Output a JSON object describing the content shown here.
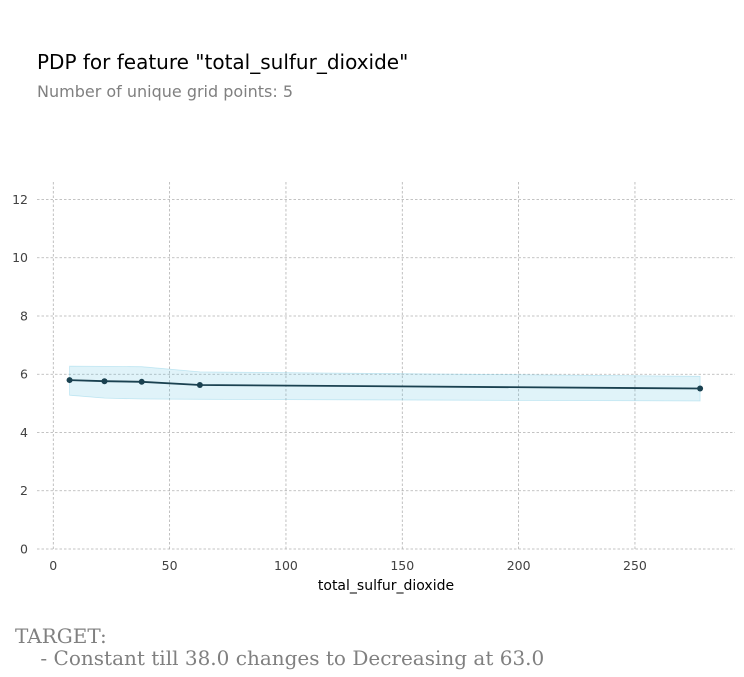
{
  "chart_data": {
    "type": "line",
    "title": "PDP for feature \"total_sulfur_dioxide\"",
    "subtitle": "Number of unique grid points: 5",
    "xlabel": "total_sulfur_dioxide",
    "ylabel": "",
    "xlim": [
      -7,
      293
    ],
    "ylim": [
      0,
      12.6
    ],
    "xticks": [
      0,
      50,
      100,
      150,
      200,
      250
    ],
    "yticks": [
      0,
      2,
      4,
      6,
      8,
      10,
      12
    ],
    "grid": true,
    "x": [
      7,
      22,
      38,
      63,
      278
    ],
    "series": [
      {
        "values": [
          5.8,
          5.76,
          5.74,
          5.63,
          5.51
        ],
        "upper": [
          6.28,
          6.27,
          6.26,
          6.08,
          5.93
        ],
        "lower": [
          5.28,
          5.18,
          5.15,
          5.14,
          5.08
        ]
      }
    ],
    "colors": {
      "line": "#1a4150",
      "band": "#66c2e0",
      "grid": "#b0b0b0"
    }
  },
  "annotation": {
    "heading": "TARGET:",
    "text": "    - Constant till 38.0 changes to Decreasing at 63.0"
  }
}
